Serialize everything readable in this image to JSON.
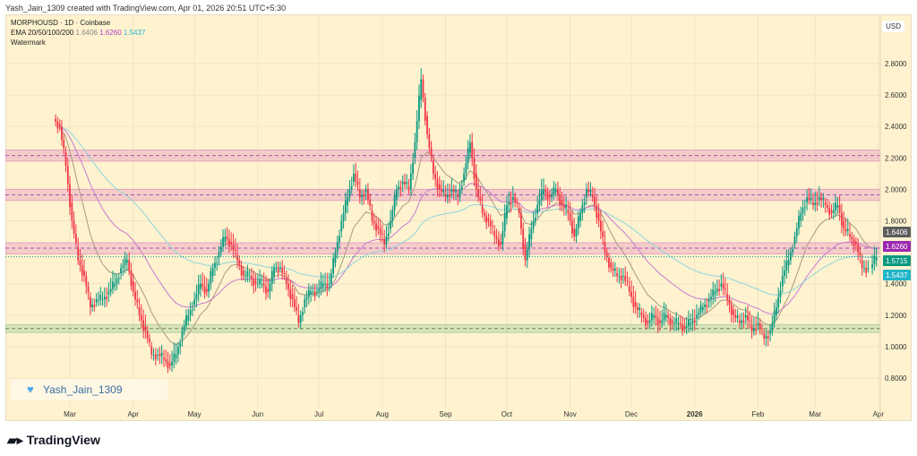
{
  "header": {
    "credit": "Yash_Jain_1309 created with TradingView.com, Apr 01, 2026 20:51 UTC+5:30"
  },
  "legend": {
    "symbol": "MORPHOUSD · 1D · Coinbase",
    "ema_label": "EMA 20/50/100/200",
    "ema_values": [
      "1.6406",
      "1.6260",
      "1.5437"
    ],
    "watermark": "Watermark"
  },
  "axis": {
    "currency": "USD",
    "price_labels": [
      "2.8000",
      "2.6000",
      "2.4000",
      "2.2000",
      "2.0000",
      "1.8000",
      "1.4000",
      "1.2000",
      "1.0000",
      "0.8000"
    ],
    "badges": [
      {
        "text": "1.6406",
        "value": 1.6406,
        "color": "#5d5d5d"
      },
      {
        "text": "1.6260",
        "value": 1.626,
        "color": "#9c27b0"
      },
      {
        "text": "1.5715",
        "value": 1.5715,
        "color": "#089981"
      },
      {
        "text": "1.5437",
        "value": 1.5437,
        "color": "#1fb5c9"
      }
    ],
    "time_labels": [
      {
        "t": "Mar",
        "d": "2025-03-01"
      },
      {
        "t": "Apr",
        "d": "2025-04-01"
      },
      {
        "t": "May",
        "d": "2025-05-01"
      },
      {
        "t": "Jun",
        "d": "2025-06-01"
      },
      {
        "t": "Jul",
        "d": "2025-07-01"
      },
      {
        "t": "Aug",
        "d": "2025-08-01"
      },
      {
        "t": "Sep",
        "d": "2025-09-01"
      },
      {
        "t": "Oct",
        "d": "2025-10-01"
      },
      {
        "t": "Nov",
        "d": "2025-11-01"
      },
      {
        "t": "Dec",
        "d": "2025-12-01"
      },
      {
        "t": "2026",
        "d": "2026-01-01"
      },
      {
        "t": "Feb",
        "d": "2026-02-01"
      },
      {
        "t": "Mar",
        "d": "2026-03-01"
      },
      {
        "t": "Apr",
        "d": "2026-04-01"
      }
    ]
  },
  "watermark": {
    "text": "Yash_Jain_1309",
    "icon": "heart-icon"
  },
  "footer": {
    "logo": "TradingView"
  },
  "chart_data": {
    "type": "candlestick",
    "ylim": [
      0.7,
      2.95
    ],
    "grid": true,
    "colors": {
      "up": "#089981",
      "down": "#f23645",
      "ema20": "#a89a80",
      "ema50": "#c77ad0",
      "ema100": "#8fd6dc"
    },
    "zones": [
      {
        "low": 2.18,
        "high": 2.25,
        "mid": 2.215,
        "color": "#e8a0c0"
      },
      {
        "low": 1.93,
        "high": 2.0,
        "mid": 1.965,
        "color": "#e8a0c0"
      },
      {
        "low": 1.59,
        "high": 1.66,
        "mid": 1.626,
        "color": "#e8a0c0"
      },
      {
        "low": 1.09,
        "high": 1.14,
        "mid": 1.115,
        "color": "#b0d0a0"
      }
    ],
    "closes": [
      [
        "2025-02-24",
        2.4
      ],
      [
        "2025-02-27",
        2.15
      ],
      [
        "2025-03-02",
        1.8
      ],
      [
        "2025-03-05",
        1.55
      ],
      [
        "2025-03-08",
        1.45
      ],
      [
        "2025-03-11",
        1.25
      ],
      [
        "2025-03-14",
        1.3
      ],
      [
        "2025-03-17",
        1.3
      ],
      [
        "2025-03-20",
        1.35
      ],
      [
        "2025-03-23",
        1.4
      ],
      [
        "2025-03-26",
        1.5
      ],
      [
        "2025-03-29",
        1.55
      ],
      [
        "2025-04-01",
        1.35
      ],
      [
        "2025-04-04",
        1.2
      ],
      [
        "2025-04-07",
        1.1
      ],
      [
        "2025-04-10",
        0.95
      ],
      [
        "2025-04-13",
        0.95
      ],
      [
        "2025-04-16",
        0.92
      ],
      [
        "2025-04-19",
        0.88
      ],
      [
        "2025-04-22",
        0.95
      ],
      [
        "2025-04-25",
        1.1
      ],
      [
        "2025-04-28",
        1.2
      ],
      [
        "2025-05-01",
        1.3
      ],
      [
        "2025-05-04",
        1.4
      ],
      [
        "2025-05-07",
        1.35
      ],
      [
        "2025-05-10",
        1.5
      ],
      [
        "2025-05-13",
        1.6
      ],
      [
        "2025-05-16",
        1.7
      ],
      [
        "2025-05-19",
        1.65
      ],
      [
        "2025-05-22",
        1.55
      ],
      [
        "2025-05-25",
        1.45
      ],
      [
        "2025-05-28",
        1.45
      ],
      [
        "2025-05-31",
        1.4
      ],
      [
        "2025-06-03",
        1.4
      ],
      [
        "2025-06-06",
        1.35
      ],
      [
        "2025-06-09",
        1.5
      ],
      [
        "2025-06-12",
        1.5
      ],
      [
        "2025-06-15",
        1.4
      ],
      [
        "2025-06-18",
        1.3
      ],
      [
        "2025-06-21",
        1.15
      ],
      [
        "2025-06-24",
        1.3
      ],
      [
        "2025-06-27",
        1.35
      ],
      [
        "2025-06-30",
        1.35
      ],
      [
        "2025-07-03",
        1.4
      ],
      [
        "2025-07-06",
        1.4
      ],
      [
        "2025-07-09",
        1.6
      ],
      [
        "2025-07-12",
        1.8
      ],
      [
        "2025-07-15",
        1.95
      ],
      [
        "2025-07-18",
        2.1
      ],
      [
        "2025-07-21",
        1.95
      ],
      [
        "2025-07-24",
        2.0
      ],
      [
        "2025-07-27",
        1.8
      ],
      [
        "2025-07-30",
        1.75
      ],
      [
        "2025-08-02",
        1.65
      ],
      [
        "2025-08-05",
        1.8
      ],
      [
        "2025-08-08",
        2.0
      ],
      [
        "2025-08-11",
        2.05
      ],
      [
        "2025-08-14",
        2.0
      ],
      [
        "2025-08-17",
        2.3
      ],
      [
        "2025-08-20",
        2.7
      ],
      [
        "2025-08-23",
        2.35
      ],
      [
        "2025-08-26",
        2.1
      ],
      [
        "2025-08-29",
        2.0
      ],
      [
        "2025-09-01",
        1.95
      ],
      [
        "2025-09-04",
        2.0
      ],
      [
        "2025-09-07",
        1.95
      ],
      [
        "2025-09-10",
        2.1
      ],
      [
        "2025-09-13",
        2.3
      ],
      [
        "2025-09-16",
        2.0
      ],
      [
        "2025-09-19",
        1.85
      ],
      [
        "2025-09-22",
        1.8
      ],
      [
        "2025-09-25",
        1.7
      ],
      [
        "2025-09-28",
        1.65
      ],
      [
        "2025-10-01",
        1.9
      ],
      [
        "2025-10-04",
        1.95
      ],
      [
        "2025-10-07",
        1.85
      ],
      [
        "2025-10-10",
        1.55
      ],
      [
        "2025-10-13",
        1.75
      ],
      [
        "2025-10-16",
        1.9
      ],
      [
        "2025-10-19",
        2.0
      ],
      [
        "2025-10-22",
        1.95
      ],
      [
        "2025-10-25",
        2.0
      ],
      [
        "2025-10-28",
        1.9
      ],
      [
        "2025-10-31",
        1.85
      ],
      [
        "2025-11-03",
        1.7
      ],
      [
        "2025-11-06",
        1.85
      ],
      [
        "2025-11-09",
        2.0
      ],
      [
        "2025-11-12",
        1.95
      ],
      [
        "2025-11-15",
        1.8
      ],
      [
        "2025-11-18",
        1.6
      ],
      [
        "2025-11-21",
        1.5
      ],
      [
        "2025-11-24",
        1.45
      ],
      [
        "2025-11-27",
        1.45
      ],
      [
        "2025-11-30",
        1.35
      ],
      [
        "2025-12-03",
        1.25
      ],
      [
        "2025-12-06",
        1.2
      ],
      [
        "2025-12-09",
        1.15
      ],
      [
        "2025-12-12",
        1.2
      ],
      [
        "2025-12-15",
        1.15
      ],
      [
        "2025-12-18",
        1.2
      ],
      [
        "2025-12-21",
        1.15
      ],
      [
        "2025-12-24",
        1.15
      ],
      [
        "2025-12-27",
        1.12
      ],
      [
        "2025-12-30",
        1.15
      ],
      [
        "2026-01-02",
        1.2
      ],
      [
        "2026-01-05",
        1.25
      ],
      [
        "2026-01-08",
        1.3
      ],
      [
        "2026-01-11",
        1.35
      ],
      [
        "2026-01-14",
        1.4
      ],
      [
        "2026-01-17",
        1.3
      ],
      [
        "2026-01-20",
        1.2
      ],
      [
        "2026-01-23",
        1.15
      ],
      [
        "2026-01-26",
        1.2
      ],
      [
        "2026-01-29",
        1.1
      ],
      [
        "2026-02-01",
        1.15
      ],
      [
        "2026-02-04",
        1.05
      ],
      [
        "2026-02-07",
        1.1
      ],
      [
        "2026-02-10",
        1.25
      ],
      [
        "2026-02-13",
        1.45
      ],
      [
        "2026-02-16",
        1.55
      ],
      [
        "2026-02-19",
        1.7
      ],
      [
        "2026-02-22",
        1.85
      ],
      [
        "2026-02-25",
        1.95
      ],
      [
        "2026-02-28",
        1.9
      ],
      [
        "2026-03-03",
        1.95
      ],
      [
        "2026-03-06",
        1.9
      ],
      [
        "2026-03-09",
        1.85
      ],
      [
        "2026-03-12",
        1.9
      ],
      [
        "2026-03-15",
        1.75
      ],
      [
        "2026-03-18",
        1.7
      ],
      [
        "2026-03-21",
        1.65
      ],
      [
        "2026-03-24",
        1.5
      ],
      [
        "2026-03-27",
        1.5
      ],
      [
        "2026-03-31",
        1.5715
      ]
    ]
  }
}
